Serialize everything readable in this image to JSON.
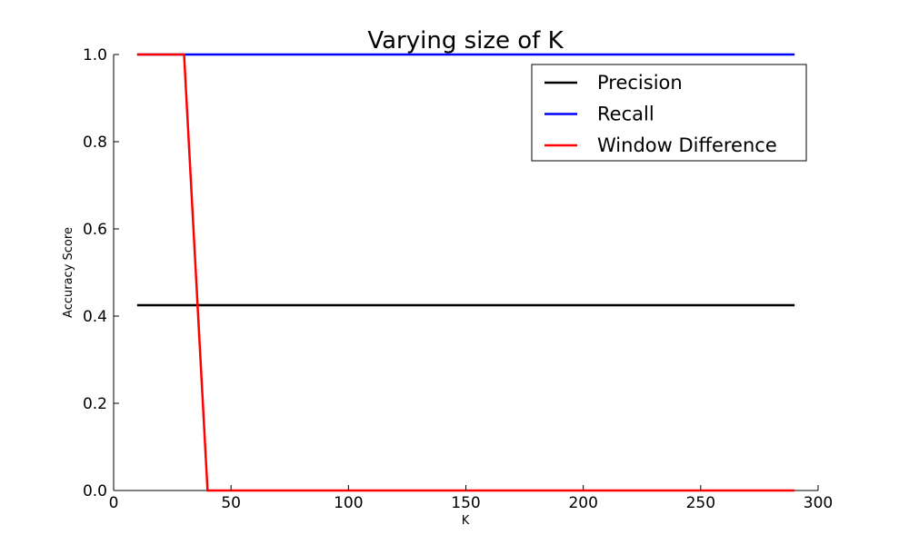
{
  "chart_data": {
    "type": "line",
    "title": "Varying size of K",
    "xlabel": "K",
    "ylabel": "Accuracy Score",
    "xlim": [
      0,
      300
    ],
    "ylim": [
      0.0,
      1.0
    ],
    "x_ticks": [
      0,
      50,
      100,
      150,
      200,
      250,
      300
    ],
    "y_ticks": [
      0.0,
      0.2,
      0.4,
      0.6,
      0.8,
      1.0
    ],
    "x_tick_labels": [
      "0",
      "50",
      "100",
      "150",
      "200",
      "250",
      "300"
    ],
    "y_tick_labels": [
      "0.0",
      "0.2",
      "0.4",
      "0.6",
      "0.8",
      "1.0"
    ],
    "grid": false,
    "legend_position": "top-right",
    "series": [
      {
        "name": "Precision",
        "color": "#000000",
        "x": [
          10,
          290
        ],
        "y": [
          0.425,
          0.425
        ]
      },
      {
        "name": "Recall",
        "color": "#0000ff",
        "x": [
          10,
          290
        ],
        "y": [
          1.0,
          1.0
        ]
      },
      {
        "name": "Window Difference",
        "color": "#ff0000",
        "x": [
          10,
          30,
          40,
          290
        ],
        "y": [
          1.0,
          1.0,
          0.0,
          0.0
        ]
      }
    ]
  }
}
